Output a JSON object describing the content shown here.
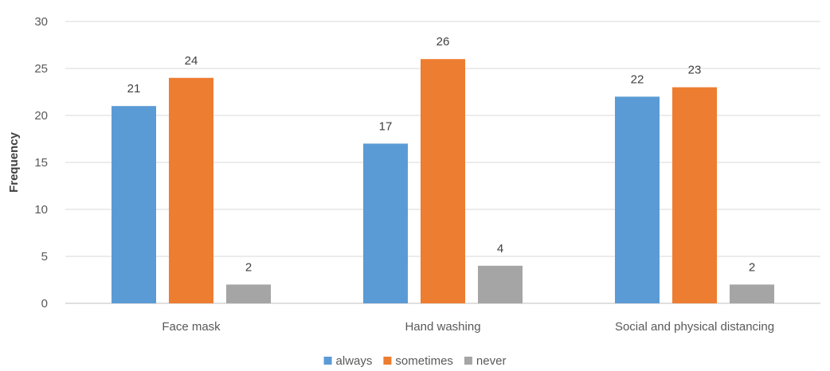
{
  "chart_data": {
    "type": "bar",
    "title": "",
    "xlabel": "",
    "ylabel": "Frequency",
    "ylim": [
      0,
      30
    ],
    "yticks": [
      0,
      5,
      10,
      15,
      20,
      25,
      30
    ],
    "grid": true,
    "legend_position": "bottom",
    "categories": [
      "Face mask",
      "Hand washing",
      "Social and physical distancing"
    ],
    "series": [
      {
        "name": "always",
        "color": "#5B9BD5",
        "values": [
          21,
          17,
          22
        ]
      },
      {
        "name": "sometimes",
        "color": "#ED7D31",
        "values": [
          24,
          26,
          23
        ]
      },
      {
        "name": "never",
        "color": "#A5A5A5",
        "values": [
          2,
          4,
          2
        ]
      }
    ]
  }
}
